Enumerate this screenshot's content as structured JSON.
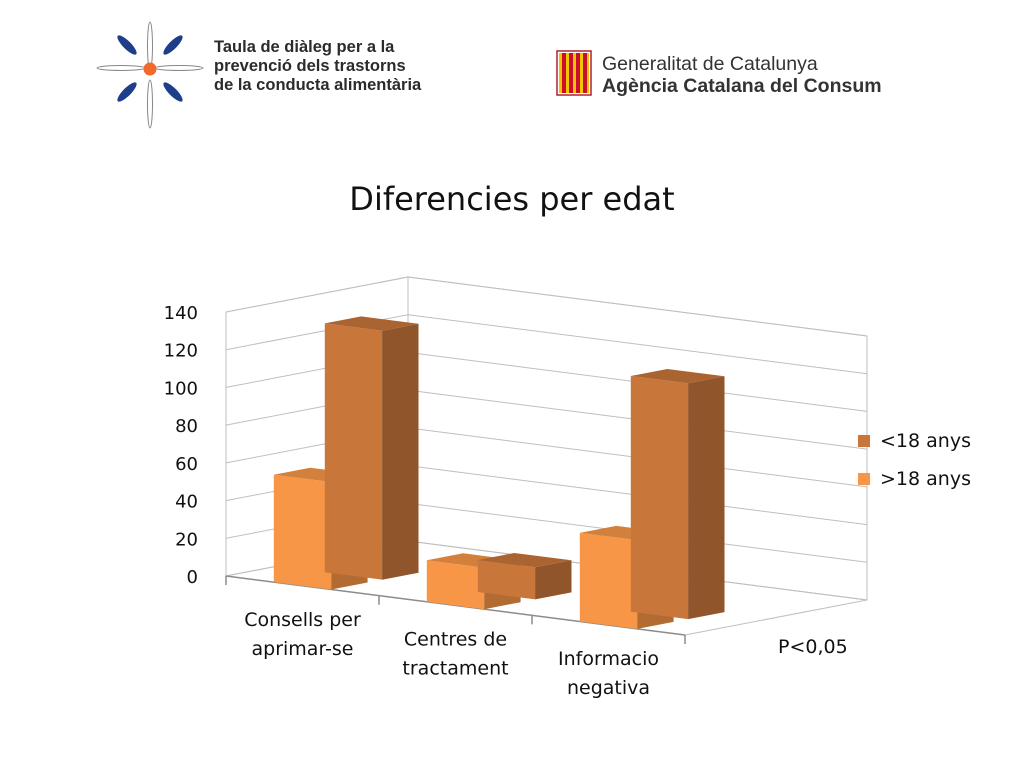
{
  "header": {
    "taula_lines": [
      "Taula de diàleg per a la",
      "prevenció dels trastorns",
      "de la conducta alimentària"
    ],
    "generalitat_lines": [
      "Generalitat de Catalunya",
      "Agència Catalana del Consum"
    ]
  },
  "footnote": "P<0,05",
  "colors": {
    "series1": "#C8763A",
    "series2": "#F79646",
    "grid": "#bfbfbf",
    "axis_text": "#111111"
  },
  "chart_data": {
    "type": "bar",
    "title": "Diferencies per edat",
    "categories": [
      "Consells per aprimar-se",
      "Centres de tractament",
      "Informacio negativa"
    ],
    "category_lines": [
      [
        "Consells per",
        "aprimar-se"
      ],
      [
        "Centres de",
        "tractament"
      ],
      [
        "Informacio",
        "negativa"
      ]
    ],
    "series": [
      {
        "name": "<18 anys",
        "values": [
          132,
          17,
          125
        ]
      },
      {
        "name": ">18 anys",
        "values": [
          57,
          22,
          47
        ]
      }
    ],
    "ylim": [
      0,
      140
    ],
    "yticks": [
      0,
      20,
      40,
      60,
      80,
      100,
      120,
      140
    ],
    "grid": true,
    "legend_position": "right",
    "three_d": true
  }
}
